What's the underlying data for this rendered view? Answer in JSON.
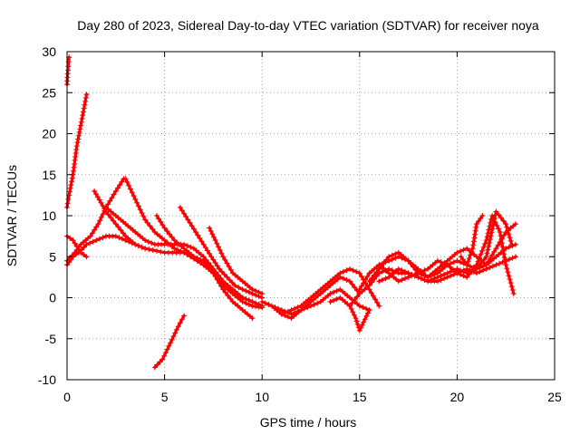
{
  "chart_data": {
    "type": "scatter",
    "title": "Day 280 of 2023, Sidereal Day-to-day VTEC variation (SDTVAR) for receiver noya",
    "xlabel": "GPS time / hours",
    "ylabel": "SDTVAR / TECUs",
    "xlim": [
      0,
      25
    ],
    "ylim": [
      -10,
      30
    ],
    "xticks": [
      0,
      5,
      10,
      15,
      20,
      25
    ],
    "yticks": [
      -10,
      -5,
      0,
      5,
      10,
      15,
      20,
      25,
      30
    ],
    "xtick_labels": [
      "0",
      "5",
      "10",
      "15",
      "20",
      "25"
    ],
    "ytick_labels": [
      "-10",
      "-5",
      "0",
      "5",
      "10",
      "15",
      "20",
      "25",
      "30"
    ],
    "grid": true,
    "marker": "+",
    "color": "#ff0000",
    "series": [
      {
        "name": "s1",
        "x": [
          0.0,
          0.1,
          0.3,
          0.5,
          0.7,
          0.9,
          1.0
        ],
        "y": [
          11,
          12.5,
          15,
          18.5,
          21,
          23.5,
          24.8
        ]
      },
      {
        "name": "s2",
        "x": [
          0.0,
          0.03,
          0.06,
          0.1
        ],
        "y": [
          26,
          27.3,
          28.2,
          29.3
        ]
      },
      {
        "name": "s3",
        "x": [
          0.0,
          0.3,
          0.6,
          1.0,
          1.5,
          2.0,
          2.5,
          3.0,
          3.5,
          4.0
        ],
        "y": [
          4,
          5,
          5.5,
          6.5,
          7,
          7.5,
          7.5,
          7,
          6.5,
          6
        ]
      },
      {
        "name": "s4",
        "x": [
          0.0,
          0.4,
          0.7,
          1.2,
          1.6,
          2.0,
          2.5,
          2.9
        ],
        "y": [
          4.5,
          5.5,
          6.5,
          7.5,
          9,
          11,
          13,
          14.5
        ]
      },
      {
        "name": "s5",
        "x": [
          0.0,
          0.3,
          0.7,
          1.0
        ],
        "y": [
          7.5,
          7,
          5.5,
          5
        ]
      },
      {
        "name": "s6",
        "x": [
          3.0,
          3.5,
          4.0,
          4.5,
          5.0,
          5.5,
          6.0,
          6.5,
          7.0,
          7.5,
          8.0,
          8.5,
          9.0,
          9.5
        ],
        "y": [
          14.5,
          12,
          9.5,
          8,
          7,
          6,
          5.5,
          5,
          4.5,
          3,
          1,
          -0.5,
          -1.5,
          -2.5
        ]
      },
      {
        "name": "s7",
        "x": [
          1.4,
          2.0,
          2.5,
          3.0,
          3.5,
          4.0,
          5.0,
          6.0,
          7.0,
          7.5,
          8.0,
          8.5,
          9.0,
          9.5,
          10.0
        ],
        "y": [
          13,
          10.5,
          9,
          7.5,
          6.5,
          6,
          5.5,
          5.5,
          4,
          3,
          1.5,
          0.5,
          -0.5,
          -1,
          -1.2
        ]
      },
      {
        "name": "s8",
        "x": [
          2.0,
          2.5,
          3.0,
          3.5,
          4.0,
          4.5,
          5.0,
          5.5,
          6.0,
          6.5,
          7.0,
          7.5,
          8.0,
          8.5,
          9.0,
          9.5,
          10.0
        ],
        "y": [
          11,
          10,
          9,
          8,
          7,
          6.5,
          6.5,
          6.5,
          6.5,
          6,
          5,
          3.5,
          2,
          0.5,
          0,
          -0.5,
          -1
        ]
      },
      {
        "name": "s9",
        "x": [
          4.6,
          5.0,
          5.5,
          6.0,
          6.5,
          7.0,
          7.5,
          8.0,
          8.5,
          9.0,
          9.5,
          10.0
        ],
        "y": [
          10,
          8.5,
          7,
          6,
          5,
          4,
          3,
          2,
          1,
          0,
          -0.5,
          -1
        ]
      },
      {
        "name": "s10",
        "x": [
          5.8,
          6.2,
          6.6,
          7.0,
          7.4,
          7.8,
          8.2,
          8.6,
          9.0,
          9.5,
          10.0
        ],
        "y": [
          11,
          9.5,
          8,
          6.5,
          5,
          3.5,
          2.5,
          1.5,
          1,
          0.5,
          0
        ]
      },
      {
        "name": "s11",
        "x": [
          7.3,
          7.6,
          8.0,
          8.5,
          9.0,
          9.5,
          10.0
        ],
        "y": [
          8.5,
          7,
          5,
          3,
          2,
          1,
          0.5
        ]
      },
      {
        "name": "s12",
        "x": [
          4.5,
          4.9,
          5.3,
          5.7,
          6.0
        ],
        "y": [
          -8.5,
          -7.5,
          -5.5,
          -3.5,
          -2.2
        ]
      },
      {
        "name": "s13",
        "x": [
          10.0,
          10.5,
          11.0,
          11.5,
          12.0,
          12.5,
          13.0,
          13.5,
          14.0,
          14.5,
          15.0,
          15.5
        ],
        "y": [
          -0.5,
          -1,
          -1.5,
          -2,
          -1.5,
          -1,
          -0.5,
          0.5,
          1,
          0,
          -1,
          -1.5
        ]
      },
      {
        "name": "s14",
        "x": [
          10.5,
          11.0,
          11.5,
          12.0,
          12.5,
          13.0,
          13.5,
          14.0,
          14.5,
          15.0
        ],
        "y": [
          -1,
          -2,
          -2.5,
          -1.5,
          -0.5,
          0.5,
          1.5,
          2.5,
          2,
          0.5
        ]
      },
      {
        "name": "s15",
        "x": [
          11.0,
          11.5,
          12.0,
          12.5,
          13.0,
          13.5,
          14.0,
          14.5,
          15.0,
          15.5,
          16.0
        ],
        "y": [
          -2,
          -1.5,
          -1,
          0,
          1,
          2,
          3,
          3.5,
          3,
          1,
          -1
        ]
      },
      {
        "name": "s16",
        "x": [
          13.5,
          14.0,
          14.5,
          14.8,
          15.0,
          15.2,
          15.5
        ],
        "y": [
          -0.5,
          0,
          -1,
          -2.5,
          -4,
          -3,
          -1.5
        ]
      },
      {
        "name": "s17",
        "x": [
          14.5,
          15.0,
          15.5,
          16.0,
          16.5,
          17.0,
          17.5,
          18.0,
          18.5,
          19.0,
          19.5,
          20.0,
          20.5,
          21.0,
          21.5,
          22.0,
          22.5,
          23.0
        ],
        "y": [
          -1,
          0.5,
          1.5,
          3,
          3.5,
          3,
          3,
          2.5,
          2,
          2,
          2.5,
          3,
          3.5,
          3,
          3.5,
          4,
          4.5,
          5
        ]
      },
      {
        "name": "s18",
        "x": [
          15.0,
          15.5,
          16.0,
          16.5,
          17.0,
          17.5,
          18.0,
          18.5,
          19.0,
          19.5,
          20.0,
          20.5,
          21.0,
          21.5,
          22.0,
          22.5,
          23.0
        ],
        "y": [
          1,
          3,
          4,
          4.5,
          5,
          4.5,
          3.5,
          2.5,
          3,
          4,
          4.5,
          4,
          3.5,
          4,
          5,
          6,
          6.5
        ]
      },
      {
        "name": "s19",
        "x": [
          15.5,
          16.0,
          16.5,
          17.0,
          17.5,
          18.0,
          18.5,
          19.0,
          19.5,
          20.0,
          20.5,
          21.0,
          21.5,
          22.0,
          22.5,
          23.0
        ],
        "y": [
          2,
          3.5,
          5,
          5.5,
          4.5,
          3,
          2.5,
          3.5,
          4.5,
          5.5,
          6,
          5,
          4,
          6,
          8,
          9
        ]
      },
      {
        "name": "s20",
        "x": [
          16.0,
          16.5,
          17.0,
          17.5,
          18.0,
          18.5,
          19.0,
          19.5,
          20.0,
          20.5,
          21.0,
          21.5,
          21.8,
          22.2,
          22.5,
          22.9
        ],
        "y": [
          4,
          3,
          2,
          2.5,
          3,
          3.5,
          4.5,
          4,
          3,
          2.5,
          4,
          7,
          10,
          8,
          4,
          0.5
        ]
      },
      {
        "name": "s21",
        "x": [
          16.0,
          16.5,
          17.0,
          17.5,
          18.0,
          18.5,
          19.0,
          19.5,
          20.0,
          20.5,
          21.0,
          21.5,
          22.0,
          22.5,
          22.8
        ],
        "y": [
          2,
          2.5,
          3.5,
          3,
          2.5,
          2,
          2.5,
          3,
          3.5,
          3,
          3.5,
          5,
          10.5,
          9,
          6.5
        ]
      },
      {
        "name": "s22",
        "x": [
          20.2,
          20.5,
          20.8,
          21.0,
          21.3
        ],
        "y": [
          5,
          4,
          6,
          9,
          10
        ]
      }
    ]
  }
}
